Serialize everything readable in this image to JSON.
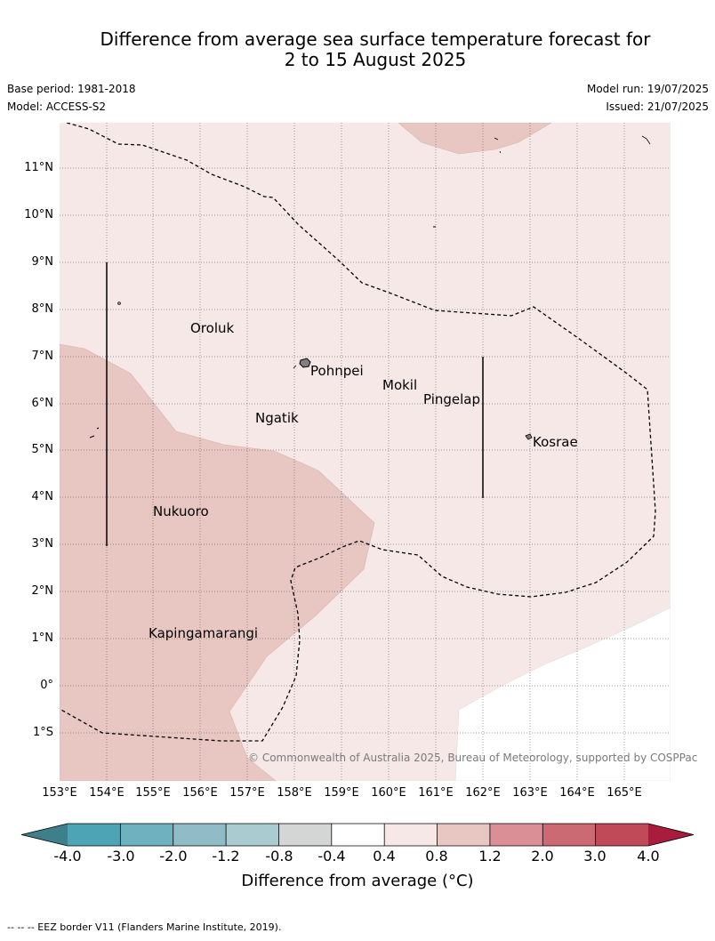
{
  "header": {
    "title_line1": "Difference from average sea surface temperature forecast for",
    "title_line2": "2 to 15 August 2025",
    "base_period": "Base period: 1981-2018",
    "model": "Model: ACCESS-S2",
    "model_run": "Model run: 19/07/2025",
    "issued": "Issued: 21/07/2025"
  },
  "map": {
    "lat_labels": [
      "11°N",
      "10°N",
      "9°N",
      "8°N",
      "7°N",
      "6°N",
      "5°N",
      "4°N",
      "3°N",
      "2°N",
      "1°N",
      "0°",
      "1°S"
    ],
    "lon_labels": [
      "153°E",
      "154°E",
      "155°E",
      "156°E",
      "157°E",
      "158°E",
      "159°E",
      "160°E",
      "161°E",
      "162°E",
      "163°E",
      "164°E",
      "165°E"
    ],
    "places": [
      "Oroluk",
      "Pohnpei",
      "Mokil",
      "Ngatik",
      "Pingelap",
      "Kosrae",
      "Nukuoro",
      "Kapingamarangi"
    ],
    "copyright": "© Commonwealth of Australia 2025, Bureau of Meteorology, supported by COSPPac"
  },
  "colorbar": {
    "ticks": [
      "-4.0",
      "-3.0",
      "-2.0",
      "-1.2",
      "-0.8",
      "-0.4",
      "0.4",
      "0.8",
      "1.2",
      "2.0",
      "3.0",
      "4.0"
    ],
    "colors": [
      "#4ca4b5",
      "#6eb2c0",
      "#8fbcc6",
      "#aacbcf",
      "#d3d6d5",
      "#ffffff",
      "#f5e8e7",
      "#e8c7c2",
      "#d98f95",
      "#cc6a74",
      "#c14a58"
    ],
    "under_color": "#3d7f8a",
    "over_color": "#a81c3c",
    "label": "Difference from average (°C)"
  },
  "footnote": "-- -- -- EEZ border V11 (Flanders Marine Institute, 2019)."
}
